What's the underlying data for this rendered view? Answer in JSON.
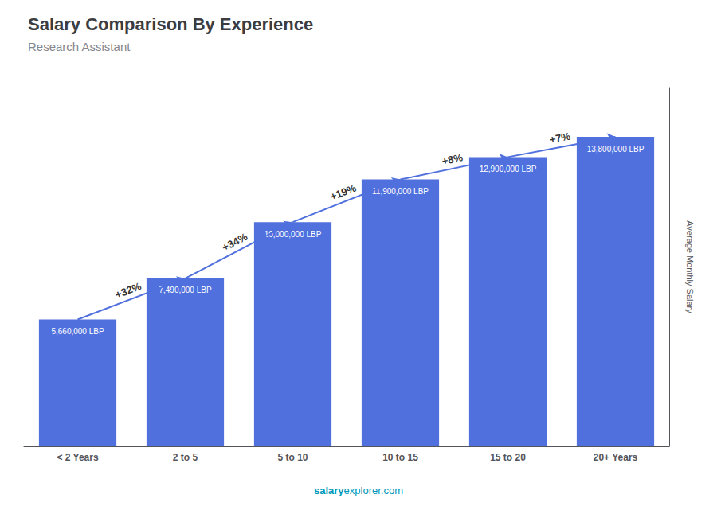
{
  "chart_data": {
    "type": "bar",
    "title": "Salary Comparison By Experience",
    "subtitle": "Research Assistant",
    "categories": [
      "< 2 Years",
      "2 to 5",
      "5 to 10",
      "10 to 15",
      "15 to 20",
      "20+ Years"
    ],
    "values": [
      5660000,
      7490000,
      10000000,
      11900000,
      12900000,
      13800000
    ],
    "value_labels": [
      "5,660,000 LBP",
      "7,490,000 LBP",
      "10,000,000 LBP",
      "11,900,000 LBP",
      "12,900,000 LBP",
      "13,800,000 LBP"
    ],
    "data_labels": true,
    "ylabel": "Average Monthly Salary",
    "ylim": [
      0,
      16000000
    ],
    "tick_labels": "x",
    "grid": false,
    "annotations": [
      {
        "text": "+32%",
        "from": "< 2 Years",
        "to": "2 to 5"
      },
      {
        "text": "+34%",
        "from": "2 to 5",
        "to": "5 to 10"
      },
      {
        "text": "+19%",
        "from": "5 to 10",
        "to": "10 to 15"
      },
      {
        "text": "+8%",
        "from": "10 to 15",
        "to": "15 to 20"
      },
      {
        "text": "+7%",
        "from": "15 to 20",
        "to": "20+ Years"
      }
    ],
    "footer": [
      "salary",
      "explorer.com"
    ]
  }
}
